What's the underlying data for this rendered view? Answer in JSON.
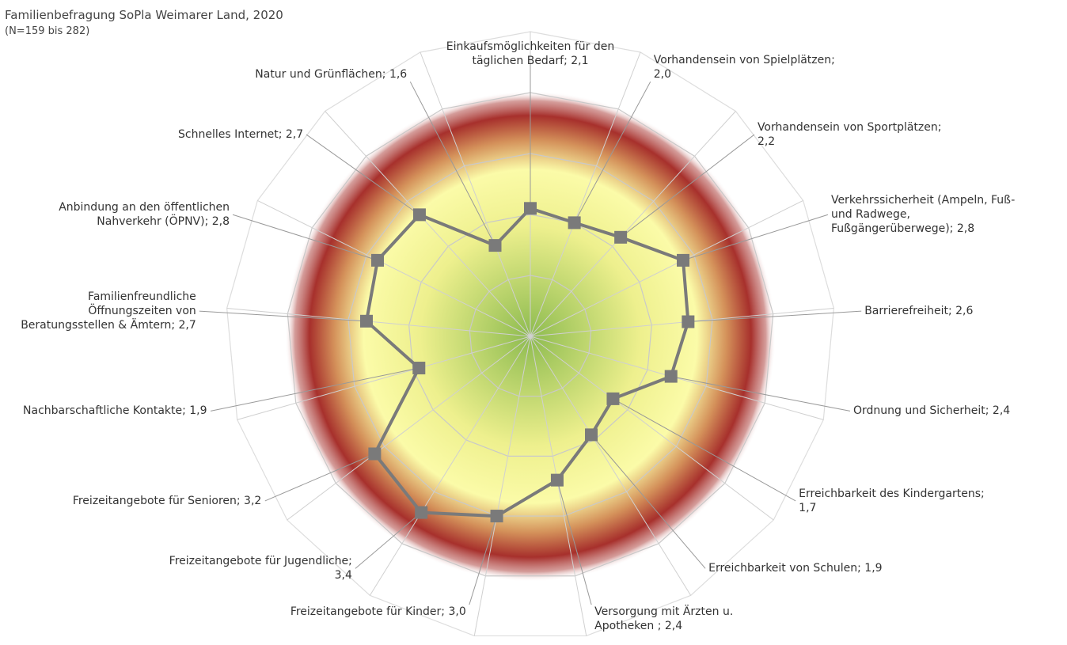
{
  "chart_data": {
    "type": "radar",
    "subtitle": "Familienbefragung SoPla Weimarer Land, 2020",
    "note": "(N=159 bis 282)",
    "categories": [
      "Einkaufsmöglichkeiten für den täglichen Bedarf; 2,1",
      "Vorhandensein von Spielplätzen; 2,0",
      "Vorhandensein von Sportplätzen; 2,2",
      "Verkehrssicherheit (Ampeln, Fuß- und Radwege, Fußgängerüberwege); 2,8",
      "Barrierefreiheit; 2,6",
      "Ordnung und Sicherheit; 2,4",
      "Erreichbarkeit des Kindergartens; 1,7",
      "Erreichbarkeit von Schulen; 1,9",
      "Versorgung mit Ärzten u. Apotheken ; 2,4",
      "Freizeitangebote für Kinder; 3,0",
      "Freizeitangebote für Jugendliche; 3,4",
      "Freizeitangebote für Senioren; 3,2",
      "Nachbarschaftliche Kontakte; 1,9",
      "Familienfreundliche Öffnungszeiten von Beratungsstellen & Ämtern; 2,7",
      "Anbindung an den öffentlichen Nahverkehr (ÖPNV); 2,8",
      "Schnelles Internet; 2,7",
      "Natur und Grünflächen; 1,6"
    ],
    "values": [
      2.1,
      2.0,
      2.2,
      2.8,
      2.6,
      2.4,
      1.7,
      1.9,
      2.4,
      3.0,
      3.4,
      3.2,
      1.9,
      2.7,
      2.8,
      2.7,
      1.6
    ],
    "color": "#7a7a7a",
    "ylim": [
      0,
      5
    ],
    "yticks": [
      1,
      2,
      3,
      4,
      5
    ]
  }
}
